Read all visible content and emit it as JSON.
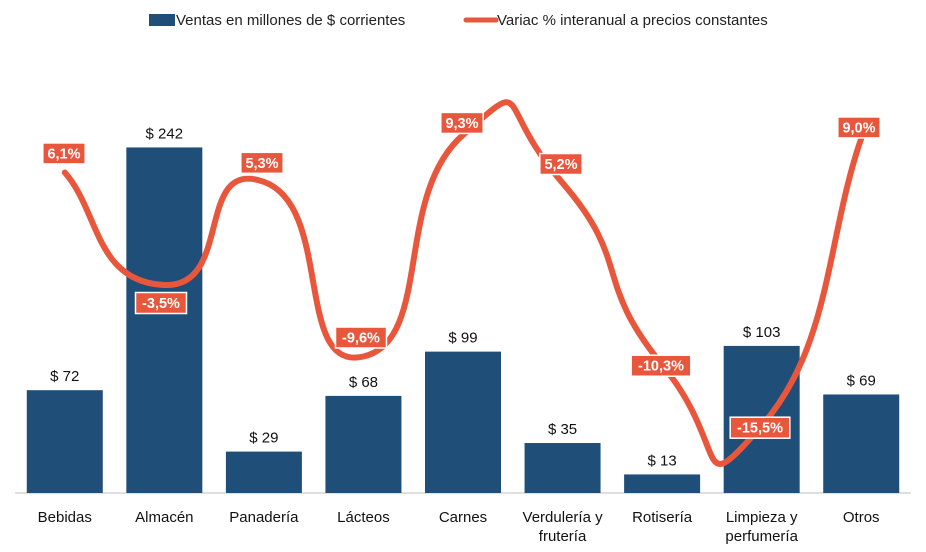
{
  "colors": {
    "bar": "#1f4e79",
    "line": "#e8573c",
    "label_bg": "#e8573c",
    "label_text": "#ffffff",
    "axis": "#bfbfbf"
  },
  "chart_data": {
    "type": "bar",
    "categories": [
      [
        "Bebidas"
      ],
      [
        "Almacén"
      ],
      [
        "Panadería"
      ],
      [
        "Lácteos"
      ],
      [
        "Carnes"
      ],
      [
        "Verdulería y",
        "frutería"
      ],
      [
        "Rotisería"
      ],
      [
        "Limpieza y",
        "perfumería"
      ],
      [
        "Otros"
      ]
    ],
    "series": [
      {
        "name": "Ventas en millones de $ corrientes",
        "type": "bar",
        "axis": "left",
        "values": [
          72,
          242,
          29,
          68,
          99,
          35,
          13,
          103,
          69
        ],
        "labels": [
          "$ 72",
          "$ 242",
          "$ 29",
          "$ 68",
          "$ 99",
          "$ 35",
          "$ 13",
          "$ 103",
          "$ 69"
        ]
      },
      {
        "name": "Variac % interanual a precios constantes",
        "type": "line",
        "smooth": true,
        "axis": "right",
        "values": [
          6.1,
          -3.5,
          5.3,
          -9.6,
          9.3,
          5.2,
          -10.3,
          -15.5,
          9.0
        ],
        "labels": [
          "6,1%",
          "-3,5%",
          "5,3%",
          "-9,6%",
          "9,3%",
          "5,2%",
          "-10,3%",
          "-15,5%",
          "9,0%"
        ]
      }
    ],
    "ylim_left": [
      0,
      250
    ],
    "ylim_right": [
      -18,
      11
    ],
    "legend_position": "top",
    "grid": false,
    "title": "",
    "xlabel": "",
    "ylabel": ""
  }
}
